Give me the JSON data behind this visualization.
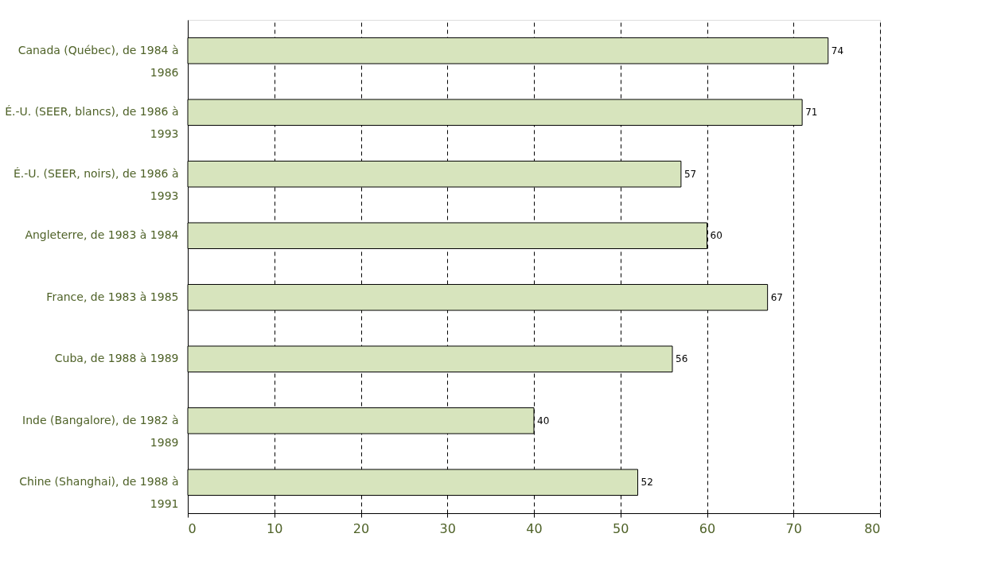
{
  "chart_data": {
    "type": "bar",
    "orientation": "horizontal",
    "categories": [
      "Canada (Québec), de 1984 à 1986",
      "É.-U. (SEER, blancs), de 1986 à 1993",
      "É.-U. (SEER, noirs), de 1986 à 1993",
      "Angleterre, de 1983 à 1984",
      "France, de 1983 à 1985",
      "Cuba, de 1988 à 1989",
      "Inde (Bangalore), de 1982 à 1989",
      "Chine (Shanghai), de 1988 à 1991"
    ],
    "values": [
      74,
      71,
      57,
      60,
      67,
      56,
      40,
      52
    ],
    "color": "#d7e4bd",
    "xlim": [
      0,
      80
    ],
    "xticks": [
      0,
      10,
      20,
      30,
      40,
      50,
      60,
      70,
      80
    ],
    "grid": "x",
    "data_labels": true
  }
}
